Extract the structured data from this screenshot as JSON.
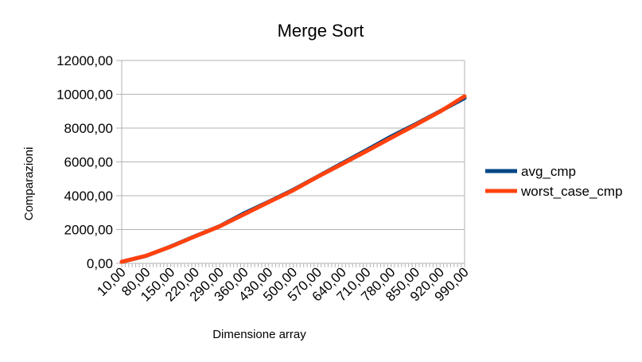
{
  "chart_data": {
    "type": "line",
    "title": "Merge Sort",
    "xlabel": "Dimensione array",
    "ylabel": "Comparazioni",
    "xlim": [
      10,
      990
    ],
    "ylim": [
      0,
      12000
    ],
    "x_tick_labels": [
      "10,00",
      "80,00",
      "150,00",
      "220,00",
      "290,00",
      "360,00",
      "430,00",
      "500,00",
      "570,00",
      "640,00",
      "710,00",
      "780,00",
      "850,00",
      "920,00",
      "990,00"
    ],
    "y_tick_labels": [
      "0,00",
      "2000,00",
      "4000,00",
      "6000,00",
      "8000,00",
      "10000,00",
      "12000,00"
    ],
    "grid": "horizontal",
    "legend_position": "right",
    "series": [
      {
        "name": "avg_cmp",
        "color": "#004586",
        "x": [
          10,
          80,
          150,
          220,
          290,
          360,
          430,
          500,
          570,
          640,
          710,
          780,
          850,
          920,
          990
        ],
        "y": [
          90,
          440,
          1000,
          1610,
          2200,
          2960,
          3640,
          4350,
          5130,
          5920,
          6700,
          7500,
          8230,
          9000,
          9780
        ]
      },
      {
        "name": "worst_case_cmp",
        "color": "#ff420e",
        "x": [
          10,
          80,
          150,
          220,
          290,
          360,
          430,
          500,
          570,
          640,
          710,
          780,
          850,
          920,
          990
        ],
        "y": [
          90,
          450,
          990,
          1600,
          2190,
          2900,
          3620,
          4320,
          5120,
          5880,
          6640,
          7420,
          8190,
          8980,
          9880
        ]
      }
    ]
  }
}
